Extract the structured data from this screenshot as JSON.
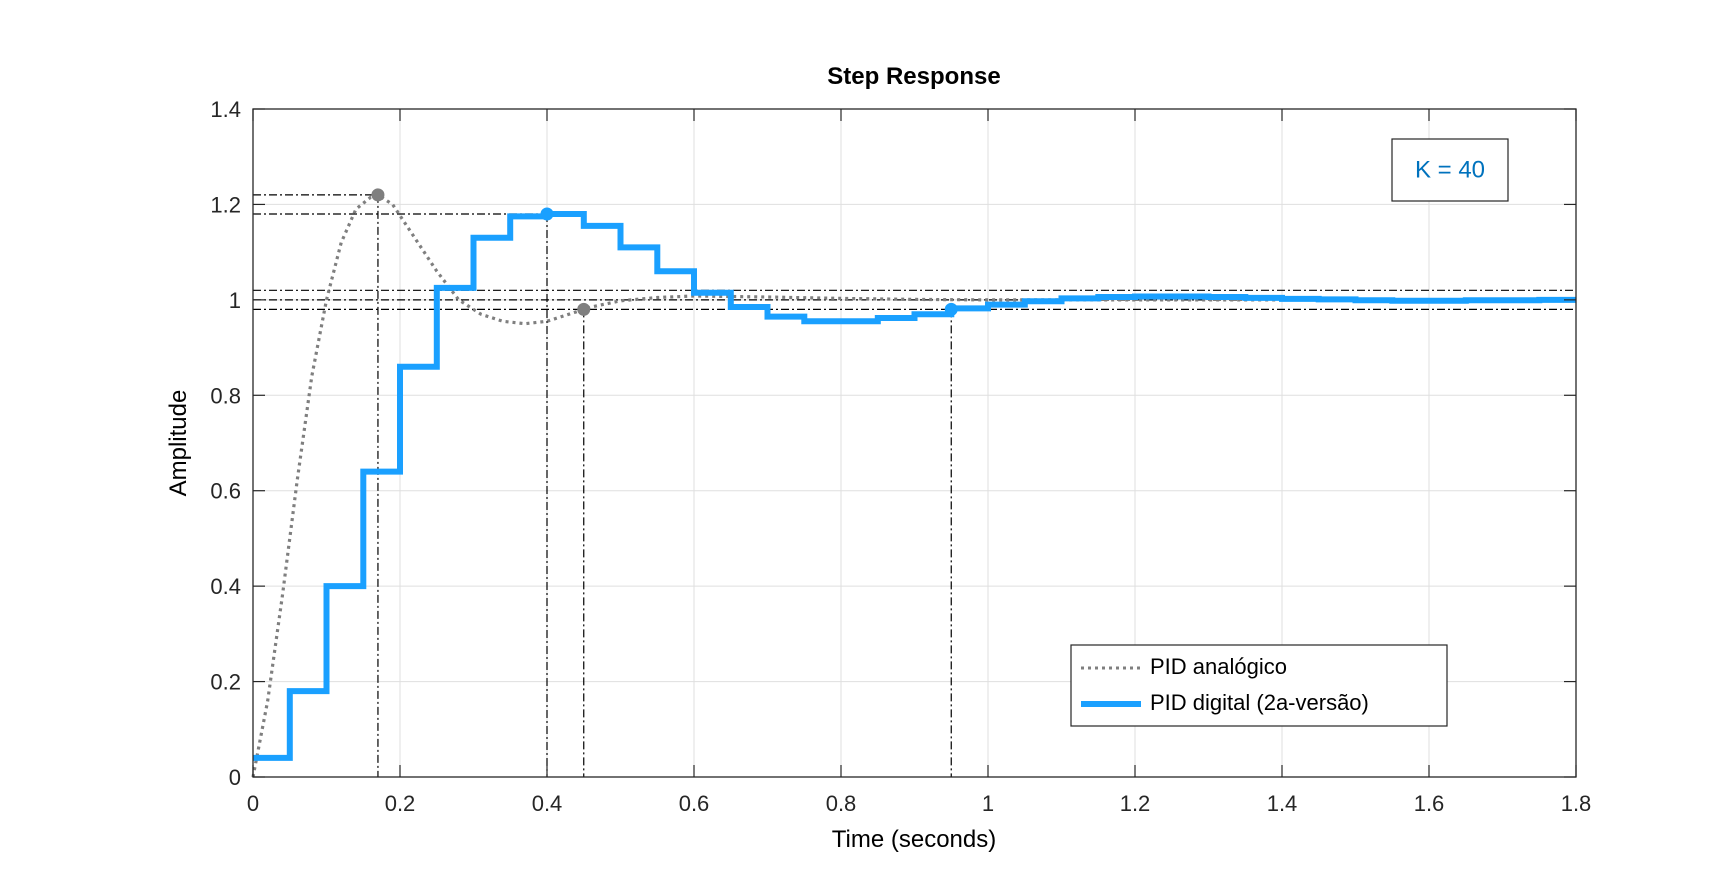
{
  "chart_data": {
    "type": "line",
    "title": "Step Response",
    "xlabel": "Time (seconds)",
    "ylabel": "Amplitude",
    "xlim": [
      0,
      1.8
    ],
    "ylim": [
      0,
      1.4
    ],
    "xticks": [
      0,
      0.2,
      0.4,
      0.6,
      0.8,
      1,
      1.2,
      1.4,
      1.6,
      1.8
    ],
    "xtick_labels": [
      "0",
      "0.2",
      "0.4",
      "0.6",
      "0.8",
      "1",
      "1.2",
      "1.4",
      "1.6",
      "1.8"
    ],
    "yticks": [
      0,
      0.2,
      0.4,
      0.6,
      0.8,
      1,
      1.2,
      1.4
    ],
    "ytick_labels": [
      "0",
      "0.2",
      "0.4",
      "0.6",
      "0.8",
      "1",
      "1.2",
      "1.4"
    ],
    "grid": true,
    "legend_position": "bottom-right",
    "annotation": {
      "text": "K = 40",
      "color": "#0072BD"
    },
    "series": [
      {
        "name": "PID analógico",
        "style": "dotted",
        "color": "#7f7f7f",
        "x": [
          0,
          0.02,
          0.04,
          0.06,
          0.08,
          0.1,
          0.12,
          0.14,
          0.16,
          0.17,
          0.19,
          0.22,
          0.25,
          0.28,
          0.31,
          0.34,
          0.37,
          0.4,
          0.43,
          0.46,
          0.5,
          0.55,
          0.6,
          0.7,
          0.8,
          0.9,
          1.0,
          1.2,
          1.5,
          1.8
        ],
        "y": [
          0,
          0.16,
          0.38,
          0.62,
          0.84,
          1.0,
          1.12,
          1.19,
          1.215,
          1.22,
          1.2,
          1.13,
          1.06,
          1.0,
          0.97,
          0.955,
          0.95,
          0.955,
          0.97,
          0.985,
          0.998,
          1.005,
          1.008,
          1.006,
          1.003,
          1.001,
          1.0,
          1.0,
          1.0,
          1.0
        ]
      },
      {
        "name": "PID digital (2a-versão)",
        "style": "stairs",
        "color": "#1AA0FF",
        "step": 0.05,
        "x": [
          0,
          0.05,
          0.1,
          0.15,
          0.2,
          0.25,
          0.3,
          0.35,
          0.4,
          0.45,
          0.5,
          0.55,
          0.6,
          0.65,
          0.7,
          0.75,
          0.8,
          0.85,
          0.9,
          0.95,
          1.0,
          1.05,
          1.1,
          1.15,
          1.2,
          1.25,
          1.3,
          1.35,
          1.4,
          1.45,
          1.5,
          1.55,
          1.6,
          1.65,
          1.7,
          1.75,
          1.8
        ],
        "y": [
          0.04,
          0.18,
          0.4,
          0.64,
          0.86,
          1.025,
          1.13,
          1.175,
          1.18,
          1.155,
          1.11,
          1.06,
          1.015,
          0.985,
          0.965,
          0.955,
          0.955,
          0.962,
          0.97,
          0.982,
          0.99,
          0.997,
          1.003,
          1.006,
          1.007,
          1.007,
          1.006,
          1.004,
          1.002,
          1.001,
          0.999,
          0.998,
          0.998,
          0.999,
          0.999,
          1.0,
          1.0
        ]
      }
    ],
    "characteristics": [
      {
        "series": "PID analógico",
        "kind": "peak",
        "x": 0.17,
        "y": 1.22
      },
      {
        "series": "PID digital (2a-versão)",
        "kind": "peak",
        "x": 0.4,
        "y": 1.18
      },
      {
        "series": "PID analógico",
        "kind": "settling",
        "x": 0.45,
        "y": 0.98
      },
      {
        "series": "PID digital (2a-versão)",
        "kind": "settling",
        "x": 0.95,
        "y": 0.98
      }
    ],
    "reference_levels": [
      1.02,
      1.0,
      0.98
    ]
  }
}
